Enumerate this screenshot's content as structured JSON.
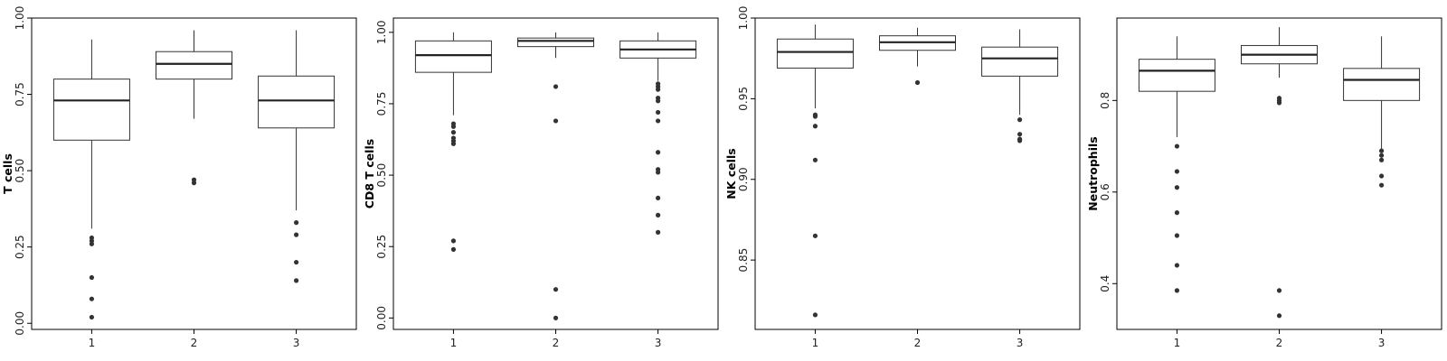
{
  "chart_data": [
    {
      "type": "box",
      "ylabel": "T cells",
      "categories": [
        "1",
        "2",
        "3"
      ],
      "ylim": [
        -0.02,
        1.0
      ],
      "yticks": [
        0.0,
        0.25,
        0.5,
        0.75,
        1.0
      ],
      "ytick_labels": [
        "0.00",
        "0.25",
        "0.50",
        "0.75",
        "1.00"
      ],
      "boxes": [
        {
          "category": "1",
          "whisker_low": 0.31,
          "q1": 0.6,
          "median": 0.73,
          "q3": 0.8,
          "whisker_high": 0.93,
          "outliers": [
            0.28,
            0.27,
            0.26,
            0.15,
            0.08,
            0.02
          ]
        },
        {
          "category": "2",
          "whisker_low": 0.67,
          "q1": 0.8,
          "median": 0.85,
          "q3": 0.89,
          "whisker_high": 0.96,
          "outliers": [
            0.47,
            0.46
          ]
        },
        {
          "category": "3",
          "whisker_low": 0.37,
          "q1": 0.64,
          "median": 0.73,
          "q3": 0.81,
          "whisker_high": 0.96,
          "outliers": [
            0.33,
            0.29,
            0.2,
            0.14
          ]
        }
      ]
    },
    {
      "type": "box",
      "ylabel": "CD8 T cells",
      "categories": [
        "1",
        "2",
        "3"
      ],
      "ylim": [
        -0.04,
        1.05
      ],
      "yticks": [
        0.0,
        0.25,
        0.5,
        0.75,
        1.0
      ],
      "ytick_labels": [
        "0.00",
        "0.25",
        "0.50",
        "0.75",
        "1.00"
      ],
      "boxes": [
        {
          "category": "1",
          "whisker_low": 0.71,
          "q1": 0.86,
          "median": 0.92,
          "q3": 0.97,
          "whisker_high": 1.0,
          "outliers": [
            0.68,
            0.67,
            0.65,
            0.63,
            0.62,
            0.61,
            0.27,
            0.24
          ]
        },
        {
          "category": "2",
          "whisker_low": 0.91,
          "q1": 0.95,
          "median": 0.97,
          "q3": 0.98,
          "whisker_high": 1.0,
          "outliers": [
            0.81,
            0.69,
            0.1,
            0.0
          ]
        },
        {
          "category": "3",
          "whisker_low": 0.83,
          "q1": 0.91,
          "median": 0.94,
          "q3": 0.97,
          "whisker_high": 1.0,
          "outliers": [
            0.82,
            0.81,
            0.8,
            0.77,
            0.76,
            0.72,
            0.69,
            0.58,
            0.52,
            0.51,
            0.42,
            0.36,
            0.3
          ]
        }
      ]
    },
    {
      "type": "box",
      "ylabel": "NK cells",
      "categories": [
        "1",
        "2",
        "3"
      ],
      "ylim": [
        0.807,
        1.0
      ],
      "yticks": [
        0.85,
        0.9,
        0.95,
        1.0
      ],
      "ytick_labels": [
        "0.85",
        "0.90",
        "0.95",
        "1.00"
      ],
      "boxes": [
        {
          "category": "1",
          "whisker_low": 0.944,
          "q1": 0.969,
          "median": 0.979,
          "q3": 0.987,
          "whisker_high": 0.996,
          "outliers": [
            0.94,
            0.939,
            0.933,
            0.912,
            0.865,
            0.816
          ]
        },
        {
          "category": "2",
          "whisker_low": 0.97,
          "q1": 0.98,
          "median": 0.985,
          "q3": 0.989,
          "whisker_high": 0.994,
          "outliers": [
            0.96
          ]
        },
        {
          "category": "3",
          "whisker_low": 0.94,
          "q1": 0.964,
          "median": 0.975,
          "q3": 0.982,
          "whisker_high": 0.993,
          "outliers": [
            0.937,
            0.928,
            0.925,
            0.924
          ]
        }
      ]
    },
    {
      "type": "box",
      "ylabel": "Neutrophils",
      "categories": [
        "1",
        "2",
        "3"
      ],
      "ylim": [
        0.3,
        0.98
      ],
      "yticks": [
        0.4,
        0.6,
        0.8
      ],
      "ytick_labels": [
        "0.4",
        "0.6",
        "0.8"
      ],
      "boxes": [
        {
          "category": "1",
          "whisker_low": 0.72,
          "q1": 0.82,
          "median": 0.865,
          "q3": 0.89,
          "whisker_high": 0.94,
          "outliers": [
            0.7,
            0.645,
            0.61,
            0.555,
            0.505,
            0.44,
            0.385
          ]
        },
        {
          "category": "2",
          "whisker_low": 0.85,
          "q1": 0.88,
          "median": 0.9,
          "q3": 0.92,
          "whisker_high": 0.96,
          "outliers": [
            0.805,
            0.8,
            0.795,
            0.385,
            0.33
          ]
        },
        {
          "category": "3",
          "whisker_low": 0.69,
          "q1": 0.8,
          "median": 0.845,
          "q3": 0.87,
          "whisker_high": 0.94,
          "outliers": [
            0.69,
            0.68,
            0.67,
            0.635,
            0.615
          ]
        }
      ]
    }
  ]
}
